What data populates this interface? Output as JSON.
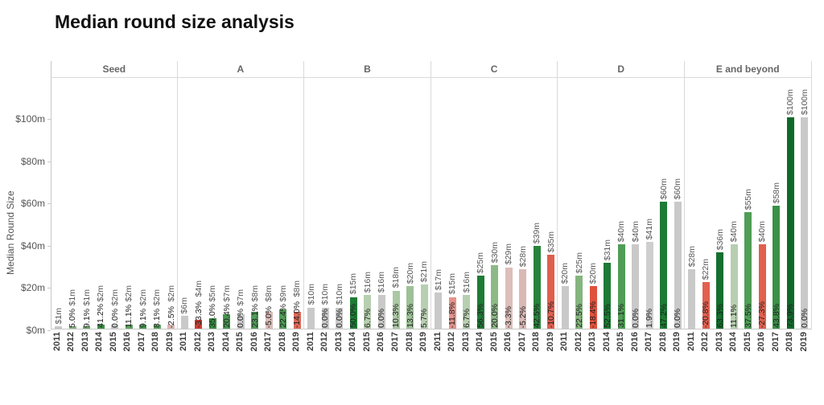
{
  "title": "Median round size analysis",
  "y_axis": {
    "label": "Median Round Size",
    "ticks": [
      {
        "value": 0,
        "label": "$0m"
      },
      {
        "value": 20,
        "label": "$20m"
      },
      {
        "value": 40,
        "label": "$40m"
      },
      {
        "value": 60,
        "label": "$60m"
      },
      {
        "value": 80,
        "label": "$80m"
      },
      {
        "value": 100,
        "label": "$100m"
      }
    ]
  },
  "status_colors": {
    "no_change_gray": "#c9c9c9",
    "strong_increase_green": "#1e7b35",
    "moderate_increase_green": "#4f9d57",
    "slight_increase_green": "#b7cfb0",
    "slight_decrease_pink": "#dabbb7",
    "strong_decrease_red": "#df5f4d"
  },
  "chart_data": {
    "type": "bar",
    "title": "Median round size analysis",
    "xlabel": "",
    "ylabel": "Median Round Size",
    "ylim": [
      0,
      100
    ],
    "grid": false,
    "legend": "none",
    "panels": [
      {
        "label": "Seed",
        "bars": [
          {
            "year": "2011",
            "value_m": 1,
            "value_label": "$1m",
            "pct_label": null,
            "color": "#c9c9c9"
          },
          {
            "year": "2012",
            "value_m": 1,
            "value_label": "$1m",
            "pct_label": "5.0%",
            "color": "#8db886"
          },
          {
            "year": "2013",
            "value_m": 1,
            "value_label": "$1m",
            "pct_label": "9.1%",
            "color": "#6ea96b"
          },
          {
            "year": "2014",
            "value_m": 2,
            "value_label": "$2m",
            "pct_label": "41.2%",
            "color": "#3f9048"
          },
          {
            "year": "2015",
            "value_m": 2,
            "value_label": "$2m",
            "pct_label": "0.0%",
            "color": "#c9c9c9"
          },
          {
            "year": "2016",
            "value_m": 2,
            "value_label": "$2m",
            "pct_label": "11.1%",
            "color": "#5ea45f"
          },
          {
            "year": "2017",
            "value_m": 2,
            "value_label": "$2m",
            "pct_label": "9.1%",
            "color": "#4f9d57"
          },
          {
            "year": "2018",
            "value_m": 2,
            "value_label": "$2m",
            "pct_label": "8.1%",
            "color": "#5ea45f"
          },
          {
            "year": "2019",
            "value_m": 2,
            "value_label": "$2m",
            "pct_label": "-2.5%",
            "color": "#d8b6b2"
          }
        ]
      },
      {
        "label": "A",
        "bars": [
          {
            "year": "2011",
            "value_m": 6,
            "value_label": "$6m",
            "pct_label": null,
            "color": "#c9c9c9"
          },
          {
            "year": "2012",
            "value_m": 4,
            "value_label": "$4m",
            "pct_label": "-33.3%",
            "color": "#cf3c30"
          },
          {
            "year": "2013",
            "value_m": 5,
            "value_label": "$5m",
            "pct_label": "35.0%",
            "color": "#35903f"
          },
          {
            "year": "2014",
            "value_m": 7,
            "value_label": "$7m",
            "pct_label": "20.4%",
            "color": "#44984d"
          },
          {
            "year": "2015",
            "value_m": 7,
            "value_label": "$7m",
            "pct_label": "0.0%",
            "color": "#c9c9c9"
          },
          {
            "year": "2016",
            "value_m": 8,
            "value_label": "$8m",
            "pct_label": "23.1%",
            "color": "#4f9d57"
          },
          {
            "year": "2017",
            "value_m": 8,
            "value_label": "$8m",
            "pct_label": "-5.0%",
            "color": "#d9bcb8"
          },
          {
            "year": "2018",
            "value_m": 9,
            "value_label": "$9m",
            "pct_label": "22.4%",
            "color": "#4f9d57"
          },
          {
            "year": "2019",
            "value_m": 8,
            "value_label": "$8m",
            "pct_label": "-14.0%",
            "color": "#dd6a59"
          }
        ]
      },
      {
        "label": "B",
        "bars": [
          {
            "year": "2011",
            "value_m": 10,
            "value_label": "$10m",
            "pct_label": null,
            "color": "#c9c9c9"
          },
          {
            "year": "2012",
            "value_m": 10,
            "value_label": "$10m",
            "pct_label": "0.0%",
            "color": "#c9c9c9"
          },
          {
            "year": "2013",
            "value_m": 10,
            "value_label": "$10m",
            "pct_label": "0.0%",
            "color": "#c9c9c9"
          },
          {
            "year": "2014",
            "value_m": 15,
            "value_label": "$15m",
            "pct_label": "50.0%",
            "color": "#1e7b35"
          },
          {
            "year": "2015",
            "value_m": 16,
            "value_label": "$16m",
            "pct_label": "6.7%",
            "color": "#b7cfb0"
          },
          {
            "year": "2016",
            "value_m": 16,
            "value_label": "$16m",
            "pct_label": "0.0%",
            "color": "#c9c9c9"
          },
          {
            "year": "2017",
            "value_m": 18,
            "value_label": "$18m",
            "pct_label": "10.3%",
            "color": "#abc8a4"
          },
          {
            "year": "2018",
            "value_m": 20,
            "value_label": "$20m",
            "pct_label": "13.3%",
            "color": "#9dc197"
          },
          {
            "year": "2019",
            "value_m": 21,
            "value_label": "$21m",
            "pct_label": "5.7%",
            "color": "#b7cfb0"
          }
        ]
      },
      {
        "label": "C",
        "bars": [
          {
            "year": "2011",
            "value_m": 17,
            "value_label": "$17m",
            "pct_label": null,
            "color": "#c9c9c9"
          },
          {
            "year": "2012",
            "value_m": 15,
            "value_label": "$15m",
            "pct_label": "-11.8%",
            "color": "#e4938a"
          },
          {
            "year": "2013",
            "value_m": 16,
            "value_label": "$16m",
            "pct_label": "6.7%",
            "color": "#b7cfb0"
          },
          {
            "year": "2014",
            "value_m": 25,
            "value_label": "$25m",
            "pct_label": "56.3%",
            "color": "#1e7b35"
          },
          {
            "year": "2015",
            "value_m": 30,
            "value_label": "$30m",
            "pct_label": "20.0%",
            "color": "#8cb985"
          },
          {
            "year": "2016",
            "value_m": 29,
            "value_label": "$29m",
            "pct_label": "-3.3%",
            "color": "#dcbeba"
          },
          {
            "year": "2017",
            "value_m": 28,
            "value_label": "$28m",
            "pct_label": "-5.2%",
            "color": "#dab9b5"
          },
          {
            "year": "2018",
            "value_m": 39,
            "value_label": "$39m",
            "pct_label": "42.5%",
            "color": "#27833a"
          },
          {
            "year": "2019",
            "value_m": 35,
            "value_label": "$35m",
            "pct_label": "-10.7%",
            "color": "#df5f4d"
          }
        ]
      },
      {
        "label": "D",
        "bars": [
          {
            "year": "2011",
            "value_m": 20,
            "value_label": "$20m",
            "pct_label": null,
            "color": "#c9c9c9"
          },
          {
            "year": "2012",
            "value_m": 25,
            "value_label": "$25m",
            "pct_label": "22.5%",
            "color": "#85b57e"
          },
          {
            "year": "2013",
            "value_m": 20,
            "value_label": "$20m",
            "pct_label": "-18.4%",
            "color": "#e0523c"
          },
          {
            "year": "2014",
            "value_m": 31,
            "value_label": "$31m",
            "pct_label": "52.5%",
            "color": "#1e7b35"
          },
          {
            "year": "2015",
            "value_m": 40,
            "value_label": "$40m",
            "pct_label": "31.1%",
            "color": "#4f9d57"
          },
          {
            "year": "2016",
            "value_m": 40,
            "value_label": "$40m",
            "pct_label": "0.0%",
            "color": "#c9c9c9"
          },
          {
            "year": "2017",
            "value_m": 41,
            "value_label": "$41m",
            "pct_label": "1.9%",
            "color": "#cfcfcf"
          },
          {
            "year": "2018",
            "value_m": 60,
            "value_label": "$60m",
            "pct_label": "47.2%",
            "color": "#1e7b35"
          },
          {
            "year": "2019",
            "value_m": 60,
            "value_label": "$60m",
            "pct_label": "0.0%",
            "color": "#c9c9c9"
          }
        ]
      },
      {
        "label": "E and beyond",
        "bars": [
          {
            "year": "2011",
            "value_m": 28,
            "value_label": "$28m",
            "pct_label": null,
            "color": "#c9c9c9"
          },
          {
            "year": "2012",
            "value_m": 22,
            "value_label": "$22m",
            "pct_label": "-20.8%",
            "color": "#e2604e"
          },
          {
            "year": "2013",
            "value_m": 36,
            "value_label": "$36m",
            "pct_label": "63.3%",
            "color": "#156f2e"
          },
          {
            "year": "2014",
            "value_m": 40,
            "value_label": "$40m",
            "pct_label": "11.1%",
            "color": "#b7cfb0"
          },
          {
            "year": "2015",
            "value_m": 55,
            "value_label": "$55m",
            "pct_label": "37.5%",
            "color": "#4f9d57"
          },
          {
            "year": "2016",
            "value_m": 40,
            "value_label": "$40m",
            "pct_label": "-27.3%",
            "color": "#e2604e"
          },
          {
            "year": "2017",
            "value_m": 58,
            "value_label": "$58m",
            "pct_label": "43.8%",
            "color": "#3a9147"
          },
          {
            "year": "2018",
            "value_m": 100,
            "value_label": "$100m",
            "pct_label": "73.9%",
            "color": "#0f6a2a"
          },
          {
            "year": "2019",
            "value_m": 100,
            "value_label": "$100m",
            "pct_label": "0.0%",
            "color": "#c9c9c9"
          }
        ]
      }
    ]
  }
}
